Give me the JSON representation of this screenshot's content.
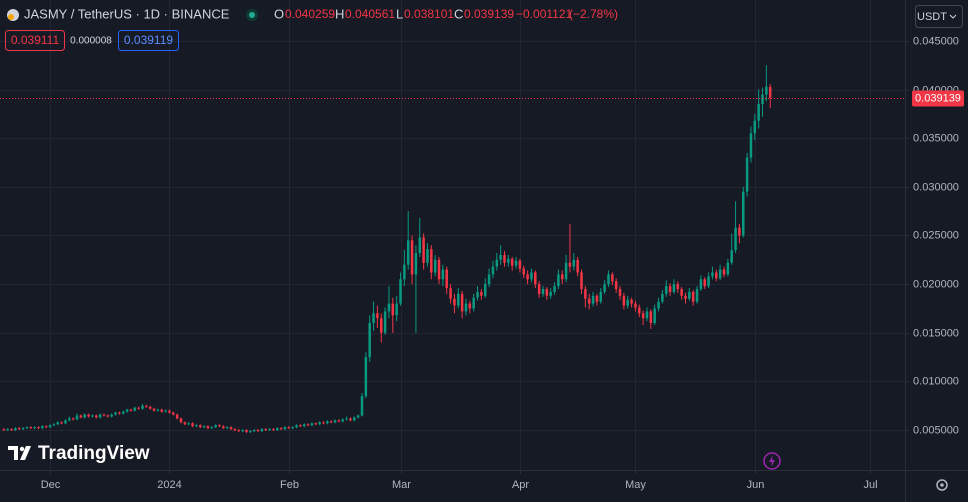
{
  "chart_data": {
    "type": "candlestick",
    "title": "JASMY / TetherUS · 1D · BINANCE",
    "quote_currency": "USDT",
    "watermark": "TradingView",
    "legend_labels": [
      "O",
      "H",
      "L",
      "C"
    ],
    "change": {
      "value": -0.001121,
      "label": "−0.001121"
    },
    "change_percent": {
      "value": -2.78,
      "label": "(−2.78%)"
    },
    "bid": 0.039111,
    "spread": 8e-06,
    "ask": 0.039119,
    "up_color": "#089981",
    "down_color": "#f23645",
    "grid": true,
    "ylim": [
      0.0009,
      0.0492
    ],
    "yticks": [
      {
        "value": 0.005,
        "label": "0.005000"
      },
      {
        "value": 0.01,
        "label": "0.010000"
      },
      {
        "value": 0.015,
        "label": "0.015000"
      },
      {
        "value": 0.02,
        "label": "0.020000"
      },
      {
        "value": 0.025,
        "label": "0.025000"
      },
      {
        "value": 0.03,
        "label": "0.030000"
      },
      {
        "value": 0.035,
        "label": "0.035000"
      },
      {
        "value": 0.04,
        "label": "0.040000"
      },
      {
        "value": 0.045,
        "label": "0.045000"
      }
    ],
    "xlim": [
      -1,
      234
    ],
    "xticks": [
      {
        "value": 12,
        "label": "Dec"
      },
      {
        "value": 43,
        "label": "2024"
      },
      {
        "value": 74,
        "label": "Feb"
      },
      {
        "value": 103,
        "label": "Mar"
      },
      {
        "value": 134,
        "label": "Apr"
      },
      {
        "value": 164,
        "label": "May"
      },
      {
        "value": 195,
        "label": "Jun"
      },
      {
        "value": 225,
        "label": "Jul"
      }
    ],
    "candles": [
      [
        0.0051,
        0.0052,
        0.0049,
        0.005
      ],
      [
        0.005,
        0.0052,
        0.0049,
        0.0051
      ],
      [
        0.0051,
        0.0052,
        0.0049,
        0.005
      ],
      [
        0.005,
        0.0053,
        0.0049,
        0.0052
      ],
      [
        0.0052,
        0.0053,
        0.005,
        0.0051
      ],
      [
        0.0051,
        0.0053,
        0.005,
        0.0052
      ],
      [
        0.0052,
        0.0054,
        0.0051,
        0.0053
      ],
      [
        0.0053,
        0.0054,
        0.0051,
        0.0052
      ],
      [
        0.0052,
        0.0054,
        0.0051,
        0.0053
      ],
      [
        0.0053,
        0.0054,
        0.0051,
        0.0052
      ],
      [
        0.0052,
        0.0055,
        0.0051,
        0.0054
      ],
      [
        0.0054,
        0.0055,
        0.0052,
        0.0053
      ],
      [
        0.0053,
        0.0056,
        0.0052,
        0.0055
      ],
      [
        0.0055,
        0.0057,
        0.0054,
        0.0056
      ],
      [
        0.0056,
        0.0059,
        0.0055,
        0.0058
      ],
      [
        0.0058,
        0.0059,
        0.0056,
        0.0057
      ],
      [
        0.0057,
        0.0061,
        0.0056,
        0.006
      ],
      [
        0.006,
        0.0064,
        0.0059,
        0.0062
      ],
      [
        0.0062,
        0.0063,
        0.006,
        0.0061
      ],
      [
        0.0061,
        0.0067,
        0.006,
        0.0065
      ],
      [
        0.0065,
        0.0066,
        0.0062,
        0.0063
      ],
      [
        0.0063,
        0.0067,
        0.0062,
        0.0066
      ],
      [
        0.0066,
        0.0067,
        0.0063,
        0.0064
      ],
      [
        0.0064,
        0.0066,
        0.0063,
        0.0065
      ],
      [
        0.0065,
        0.0066,
        0.0062,
        0.0063
      ],
      [
        0.0063,
        0.0067,
        0.0062,
        0.0066
      ],
      [
        0.0066,
        0.0067,
        0.0064,
        0.0065
      ],
      [
        0.0065,
        0.0066,
        0.0063,
        0.0064
      ],
      [
        0.0064,
        0.0067,
        0.0063,
        0.0066
      ],
      [
        0.0066,
        0.0069,
        0.0065,
        0.0068
      ],
      [
        0.0068,
        0.0069,
        0.0066,
        0.0067
      ],
      [
        0.0067,
        0.007,
        0.0066,
        0.0069
      ],
      [
        0.0069,
        0.0072,
        0.0068,
        0.0071
      ],
      [
        0.0071,
        0.0072,
        0.0069,
        0.007
      ],
      [
        0.007,
        0.0074,
        0.0069,
        0.0073
      ],
      [
        0.0073,
        0.0074,
        0.0071,
        0.0072
      ],
      [
        0.0072,
        0.0077,
        0.0071,
        0.0075
      ],
      [
        0.0075,
        0.0076,
        0.0073,
        0.0074
      ],
      [
        0.0074,
        0.0075,
        0.0071,
        0.0072
      ],
      [
        0.0072,
        0.0073,
        0.0069,
        0.007
      ],
      [
        0.007,
        0.0072,
        0.0069,
        0.0071
      ],
      [
        0.0071,
        0.0072,
        0.0068,
        0.0069
      ],
      [
        0.0069,
        0.0071,
        0.0068,
        0.007
      ],
      [
        0.007,
        0.0071,
        0.0067,
        0.0068
      ],
      [
        0.0068,
        0.0069,
        0.0065,
        0.0066
      ],
      [
        0.0066,
        0.0067,
        0.0061,
        0.0062
      ],
      [
        0.0062,
        0.0063,
        0.0057,
        0.0058
      ],
      [
        0.0058,
        0.0059,
        0.0055,
        0.0056
      ],
      [
        0.0056,
        0.0058,
        0.0055,
        0.0057
      ],
      [
        0.0057,
        0.0058,
        0.0053,
        0.0054
      ],
      [
        0.0054,
        0.0056,
        0.0053,
        0.0055
      ],
      [
        0.0055,
        0.0056,
        0.0052,
        0.0053
      ],
      [
        0.0053,
        0.0055,
        0.0052,
        0.0054
      ],
      [
        0.0054,
        0.0055,
        0.0051,
        0.0052
      ],
      [
        0.0052,
        0.0054,
        0.0051,
        0.0053
      ],
      [
        0.0053,
        0.0056,
        0.0052,
        0.0055
      ],
      [
        0.0055,
        0.0056,
        0.0053,
        0.0054
      ],
      [
        0.0054,
        0.0055,
        0.0051,
        0.0052
      ],
      [
        0.0052,
        0.0054,
        0.0051,
        0.0053
      ],
      [
        0.0053,
        0.0054,
        0.005,
        0.0051
      ],
      [
        0.0051,
        0.0052,
        0.0049,
        0.005
      ],
      [
        0.005,
        0.0051,
        0.0048,
        0.0049
      ],
      [
        0.0049,
        0.0051,
        0.0048,
        0.005
      ],
      [
        0.005,
        0.0051,
        0.0047,
        0.0048
      ],
      [
        0.0048,
        0.005,
        0.0047,
        0.0049
      ],
      [
        0.0049,
        0.0051,
        0.0048,
        0.005
      ],
      [
        0.005,
        0.0051,
        0.0048,
        0.0049
      ],
      [
        0.0049,
        0.0052,
        0.0048,
        0.0051
      ],
      [
        0.0051,
        0.0052,
        0.0049,
        0.005
      ],
      [
        0.005,
        0.0052,
        0.0049,
        0.0051
      ],
      [
        0.0051,
        0.0052,
        0.0049,
        0.005
      ],
      [
        0.005,
        0.0053,
        0.0049,
        0.0052
      ],
      [
        0.0052,
        0.0053,
        0.005,
        0.0051
      ],
      [
        0.0051,
        0.0054,
        0.005,
        0.0053
      ],
      [
        0.0053,
        0.0054,
        0.0051,
        0.0052
      ],
      [
        0.0052,
        0.0054,
        0.0051,
        0.0053
      ],
      [
        0.0053,
        0.0056,
        0.0052,
        0.0055
      ],
      [
        0.0055,
        0.0056,
        0.0053,
        0.0054
      ],
      [
        0.0054,
        0.0057,
        0.0053,
        0.0056
      ],
      [
        0.0056,
        0.0057,
        0.0054,
        0.0055
      ],
      [
        0.0055,
        0.0058,
        0.0054,
        0.0057
      ],
      [
        0.0057,
        0.0058,
        0.0055,
        0.0056
      ],
      [
        0.0056,
        0.0059,
        0.0055,
        0.0058
      ],
      [
        0.0058,
        0.0059,
        0.0056,
        0.0057
      ],
      [
        0.0057,
        0.006,
        0.0056,
        0.0059
      ],
      [
        0.0059,
        0.006,
        0.0057,
        0.0058
      ],
      [
        0.0058,
        0.0061,
        0.0057,
        0.006
      ],
      [
        0.006,
        0.0061,
        0.0058,
        0.0059
      ],
      [
        0.0059,
        0.0062,
        0.0058,
        0.0061
      ],
      [
        0.0061,
        0.0064,
        0.006,
        0.0062
      ],
      [
        0.0062,
        0.0063,
        0.0059,
        0.006
      ],
      [
        0.006,
        0.0064,
        0.0059,
        0.0063
      ],
      [
        0.0063,
        0.0066,
        0.0062,
        0.0065
      ],
      [
        0.0065,
        0.0088,
        0.0064,
        0.0085
      ],
      [
        0.0085,
        0.013,
        0.0083,
        0.0125
      ],
      [
        0.0125,
        0.0168,
        0.012,
        0.016
      ],
      [
        0.016,
        0.0182,
        0.0152,
        0.017
      ],
      [
        0.017,
        0.0178,
        0.0155,
        0.0165
      ],
      [
        0.0165,
        0.017,
        0.014,
        0.015
      ],
      [
        0.015,
        0.0176,
        0.0148,
        0.0172
      ],
      [
        0.0172,
        0.0198,
        0.0165,
        0.018
      ],
      [
        0.018,
        0.0186,
        0.015,
        0.0168
      ],
      [
        0.0168,
        0.0188,
        0.0162,
        0.018
      ],
      [
        0.018,
        0.0212,
        0.0178,
        0.0205
      ],
      [
        0.0205,
        0.0235,
        0.0198,
        0.022
      ],
      [
        0.022,
        0.0275,
        0.0215,
        0.0245
      ],
      [
        0.0245,
        0.025,
        0.02,
        0.021
      ],
      [
        0.021,
        0.024,
        0.015,
        0.0232
      ],
      [
        0.0232,
        0.0268,
        0.0228,
        0.0248
      ],
      [
        0.0248,
        0.0252,
        0.0215,
        0.0222
      ],
      [
        0.0222,
        0.0242,
        0.0218,
        0.0236
      ],
      [
        0.0236,
        0.024,
        0.0205,
        0.0212
      ],
      [
        0.0212,
        0.023,
        0.0208,
        0.0225
      ],
      [
        0.0225,
        0.0228,
        0.02,
        0.0205
      ],
      [
        0.0205,
        0.022,
        0.0198,
        0.0215
      ],
      [
        0.0215,
        0.0218,
        0.019,
        0.0196
      ],
      [
        0.0196,
        0.02,
        0.018,
        0.0185
      ],
      [
        0.0185,
        0.019,
        0.017,
        0.0178
      ],
      [
        0.0178,
        0.0196,
        0.0175,
        0.019
      ],
      [
        0.019,
        0.0193,
        0.0165,
        0.0172
      ],
      [
        0.0172,
        0.0185,
        0.0168,
        0.018
      ],
      [
        0.018,
        0.0183,
        0.017,
        0.0175
      ],
      [
        0.0175,
        0.019,
        0.0172,
        0.0186
      ],
      [
        0.0186,
        0.0198,
        0.0183,
        0.0192
      ],
      [
        0.0192,
        0.0195,
        0.0184,
        0.0188
      ],
      [
        0.0188,
        0.0206,
        0.0186,
        0.02
      ],
      [
        0.02,
        0.0216,
        0.0197,
        0.021
      ],
      [
        0.021,
        0.0224,
        0.0206,
        0.0218
      ],
      [
        0.0218,
        0.0232,
        0.0214,
        0.0225
      ],
      [
        0.0225,
        0.024,
        0.022,
        0.023
      ],
      [
        0.023,
        0.0234,
        0.0218,
        0.0222
      ],
      [
        0.0222,
        0.023,
        0.0218,
        0.0226
      ],
      [
        0.0226,
        0.0228,
        0.0214,
        0.0219
      ],
      [
        0.0219,
        0.0228,
        0.0216,
        0.0224
      ],
      [
        0.0224,
        0.0226,
        0.0212,
        0.0216
      ],
      [
        0.0216,
        0.0219,
        0.0206,
        0.021
      ],
      [
        0.021,
        0.0214,
        0.02,
        0.0205
      ],
      [
        0.0205,
        0.0216,
        0.0202,
        0.0212
      ],
      [
        0.0212,
        0.0214,
        0.0196,
        0.02
      ],
      [
        0.02,
        0.0203,
        0.0186,
        0.019
      ],
      [
        0.019,
        0.0198,
        0.0187,
        0.0195
      ],
      [
        0.0195,
        0.0197,
        0.0184,
        0.0188
      ],
      [
        0.0188,
        0.0196,
        0.0185,
        0.0192
      ],
      [
        0.0192,
        0.0202,
        0.0189,
        0.0198
      ],
      [
        0.0198,
        0.0215,
        0.0195,
        0.021
      ],
      [
        0.021,
        0.0214,
        0.02,
        0.0205
      ],
      [
        0.0205,
        0.023,
        0.0202,
        0.0222
      ],
      [
        0.0222,
        0.0262,
        0.0212,
        0.0218
      ],
      [
        0.0218,
        0.0232,
        0.0214,
        0.0225
      ],
      [
        0.0225,
        0.0228,
        0.0208,
        0.0212
      ],
      [
        0.0212,
        0.0215,
        0.019,
        0.0195
      ],
      [
        0.0195,
        0.0198,
        0.0176,
        0.0185
      ],
      [
        0.0185,
        0.019,
        0.0174,
        0.018
      ],
      [
        0.018,
        0.0192,
        0.0177,
        0.0188
      ],
      [
        0.0188,
        0.019,
        0.0178,
        0.0182
      ],
      [
        0.0182,
        0.0196,
        0.018,
        0.0192
      ],
      [
        0.0192,
        0.0204,
        0.019,
        0.02
      ],
      [
        0.02,
        0.0214,
        0.0197,
        0.021
      ],
      [
        0.021,
        0.0212,
        0.0199,
        0.0203
      ],
      [
        0.0203,
        0.0206,
        0.0191,
        0.0195
      ],
      [
        0.0195,
        0.0198,
        0.0184,
        0.0188
      ],
      [
        0.0188,
        0.0191,
        0.0174,
        0.0178
      ],
      [
        0.0178,
        0.0188,
        0.0175,
        0.0184
      ],
      [
        0.0184,
        0.0186,
        0.0176,
        0.018
      ],
      [
        0.018,
        0.0183,
        0.0172,
        0.0176
      ],
      [
        0.0176,
        0.0179,
        0.0166,
        0.017
      ],
      [
        0.017,
        0.0173,
        0.0158,
        0.0165
      ],
      [
        0.0165,
        0.0176,
        0.0162,
        0.0172
      ],
      [
        0.0172,
        0.0174,
        0.0154,
        0.016
      ],
      [
        0.016,
        0.0179,
        0.0158,
        0.0175
      ],
      [
        0.0175,
        0.0186,
        0.0172,
        0.0182
      ],
      [
        0.0182,
        0.0194,
        0.018,
        0.019
      ],
      [
        0.019,
        0.0204,
        0.0187,
        0.0198
      ],
      [
        0.0198,
        0.0201,
        0.0188,
        0.0192
      ],
      [
        0.0192,
        0.0205,
        0.019,
        0.02
      ],
      [
        0.02,
        0.0203,
        0.0191,
        0.0195
      ],
      [
        0.0195,
        0.0197,
        0.0184,
        0.0188
      ],
      [
        0.0188,
        0.0191,
        0.018,
        0.0185
      ],
      [
        0.0185,
        0.0196,
        0.0183,
        0.0192
      ],
      [
        0.0192,
        0.0194,
        0.0178,
        0.0182
      ],
      [
        0.0182,
        0.0198,
        0.018,
        0.0195
      ],
      [
        0.0195,
        0.0209,
        0.0193,
        0.0205
      ],
      [
        0.0205,
        0.0207,
        0.0195,
        0.0198
      ],
      [
        0.0198,
        0.0212,
        0.0196,
        0.0208
      ],
      [
        0.0208,
        0.0218,
        0.0205,
        0.0212
      ],
      [
        0.0212,
        0.0215,
        0.0203,
        0.0206
      ],
      [
        0.0206,
        0.022,
        0.0204,
        0.0215
      ],
      [
        0.0215,
        0.0218,
        0.0207,
        0.021
      ],
      [
        0.021,
        0.0226,
        0.0208,
        0.0222
      ],
      [
        0.0222,
        0.0252,
        0.022,
        0.0235
      ],
      [
        0.0235,
        0.0285,
        0.0232,
        0.0258
      ],
      [
        0.0258,
        0.0262,
        0.0242,
        0.025
      ],
      [
        0.025,
        0.03,
        0.0248,
        0.0295
      ],
      [
        0.0295,
        0.0335,
        0.029,
        0.033
      ],
      [
        0.033,
        0.0362,
        0.0325,
        0.0355
      ],
      [
        0.0355,
        0.0375,
        0.0348,
        0.0368
      ],
      [
        0.0368,
        0.04,
        0.036,
        0.0385
      ],
      [
        0.0385,
        0.0402,
        0.0372,
        0.0395
      ],
      [
        0.0395,
        0.0425,
        0.0388,
        0.0403
      ],
      [
        0.040259,
        0.040561,
        0.038101,
        0.039139
      ]
    ]
  }
}
